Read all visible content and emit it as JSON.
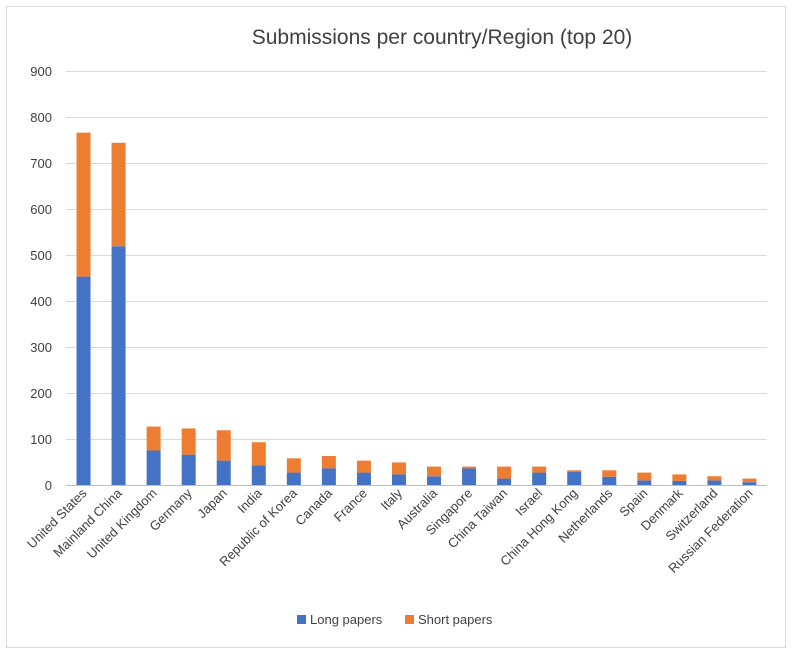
{
  "chart_data": {
    "type": "bar",
    "stacked": true,
    "title": "Submissions per country/Region  (top 20)",
    "categories": [
      "United States",
      "Mainland China",
      "United Kingdom",
      "Germany",
      "Japan",
      "India",
      "Republic of Korea",
      "Canada",
      "France",
      "Italy",
      "Australia",
      "Singapore",
      "China Taiwan",
      "Israel",
      "China Hong Kong",
      "Netherlands",
      "Spain",
      "Denmark",
      "Switzerland",
      "Russian Federation"
    ],
    "series": [
      {
        "name": "Long papers",
        "color": "#4472c4",
        "values": [
          453,
          519,
          75,
          66,
          53,
          43,
          27,
          36,
          27,
          23,
          19,
          36,
          14,
          27,
          29,
          18,
          10,
          9,
          10,
          6
        ]
      },
      {
        "name": "Short papers",
        "color": "#ed7d31",
        "values": [
          313,
          225,
          52,
          57,
          66,
          50,
          31,
          27,
          26,
          26,
          21,
          4,
          26,
          13,
          3,
          14,
          17,
          14,
          9,
          8
        ]
      }
    ],
    "ylim": [
      0,
      900
    ],
    "yticks": [
      0,
      100,
      200,
      300,
      400,
      500,
      600,
      700,
      800,
      900
    ],
    "grid": true,
    "legend_position": "bottom"
  }
}
